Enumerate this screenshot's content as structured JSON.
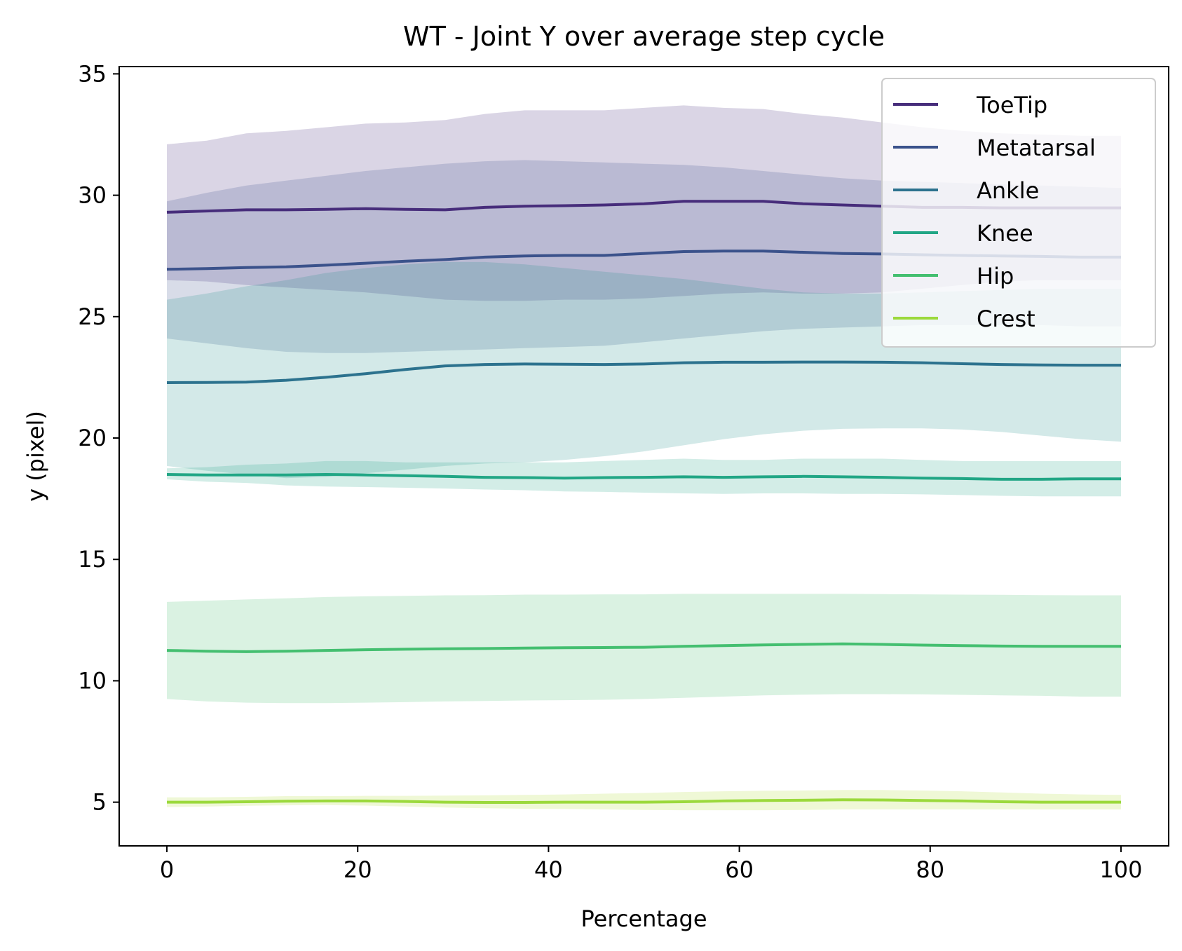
{
  "chart_data": {
    "type": "line",
    "title": "WT - Joint Y over average step cycle",
    "xlabel": "Percentage",
    "ylabel": "y (pixel)",
    "xlim": [
      -5,
      105
    ],
    "ylim": [
      3.2,
      35.3
    ],
    "xticks": [
      0,
      20,
      40,
      60,
      80,
      100
    ],
    "yticks": [
      5,
      10,
      15,
      20,
      25,
      30,
      35
    ],
    "legend_position": "upper right",
    "x": [
      0,
      4.17,
      8.33,
      12.5,
      16.67,
      20.83,
      25,
      29.17,
      33.33,
      37.5,
      41.67,
      45.83,
      50,
      54.17,
      58.33,
      62.5,
      66.67,
      70.83,
      75,
      79.17,
      83.33,
      87.5,
      91.67,
      95.83,
      100
    ],
    "series": [
      {
        "name": "ToeTip",
        "color": "#472d7b",
        "mean": [
          29.3,
          29.35,
          29.4,
          29.4,
          29.42,
          29.45,
          29.42,
          29.4,
          29.5,
          29.55,
          29.57,
          29.6,
          29.65,
          29.75,
          29.75,
          29.75,
          29.65,
          29.6,
          29.55,
          29.5,
          29.5,
          29.48,
          29.48,
          29.48,
          29.48
        ],
        "upper": [
          32.1,
          32.25,
          32.55,
          32.65,
          32.8,
          32.95,
          33.0,
          33.1,
          33.35,
          33.5,
          33.5,
          33.5,
          33.6,
          33.7,
          33.6,
          33.55,
          33.35,
          33.2,
          33.0,
          32.8,
          32.65,
          32.55,
          32.5,
          32.45,
          32.45
        ],
        "lower": [
          26.5,
          26.45,
          26.3,
          26.2,
          26.1,
          26.0,
          25.85,
          25.7,
          25.65,
          25.65,
          25.7,
          25.7,
          25.75,
          25.85,
          25.95,
          26.0,
          25.95,
          25.95,
          26.0,
          26.15,
          26.3,
          26.45,
          26.5,
          26.5,
          26.5
        ]
      },
      {
        "name": "Metatarsal",
        "color": "#3b528b",
        "mean": [
          26.95,
          26.98,
          27.02,
          27.05,
          27.12,
          27.2,
          27.28,
          27.35,
          27.45,
          27.5,
          27.52,
          27.52,
          27.6,
          27.68,
          27.7,
          27.7,
          27.65,
          27.6,
          27.58,
          27.55,
          27.52,
          27.5,
          27.48,
          27.45,
          27.45
        ],
        "upper": [
          29.75,
          30.1,
          30.4,
          30.6,
          30.8,
          31.0,
          31.15,
          31.3,
          31.4,
          31.45,
          31.4,
          31.35,
          31.3,
          31.25,
          31.15,
          31.0,
          30.85,
          30.7,
          30.6,
          30.55,
          30.5,
          30.45,
          30.4,
          30.35,
          30.3
        ],
        "lower": [
          24.1,
          23.9,
          23.7,
          23.55,
          23.5,
          23.5,
          23.55,
          23.6,
          23.65,
          23.7,
          23.75,
          23.8,
          23.95,
          24.1,
          24.25,
          24.4,
          24.5,
          24.55,
          24.6,
          24.65,
          24.65,
          24.65,
          24.65,
          24.6,
          24.6
        ]
      },
      {
        "name": "Ankle",
        "color": "#21918c",
        "lineColor": "#2c728e",
        "mean": [
          22.28,
          22.29,
          22.3,
          22.38,
          22.5,
          22.65,
          22.82,
          22.97,
          23.03,
          23.05,
          23.04,
          23.03,
          23.05,
          23.1,
          23.12,
          23.12,
          23.13,
          23.13,
          23.12,
          23.1,
          23.06,
          23.03,
          23.01,
          23.0,
          23.0
        ],
        "upper": [
          25.7,
          25.95,
          26.25,
          26.5,
          26.8,
          27.0,
          27.15,
          27.25,
          27.25,
          27.15,
          27.0,
          26.85,
          26.7,
          26.55,
          26.35,
          26.15,
          26.0,
          25.95,
          25.95,
          26.0,
          26.05,
          26.1,
          26.15,
          26.15,
          26.15
        ],
        "lower": [
          18.85,
          18.65,
          18.5,
          18.35,
          18.4,
          18.55,
          18.7,
          18.85,
          18.95,
          19.0,
          19.1,
          19.25,
          19.45,
          19.7,
          19.95,
          20.15,
          20.3,
          20.38,
          20.4,
          20.4,
          20.35,
          20.25,
          20.1,
          19.95,
          19.85
        ]
      },
      {
        "name": "Knee",
        "color": "#21a685",
        "mean": [
          18.5,
          18.48,
          18.48,
          18.48,
          18.5,
          18.48,
          18.45,
          18.42,
          18.38,
          18.37,
          18.35,
          18.37,
          18.38,
          18.4,
          18.38,
          18.4,
          18.42,
          18.4,
          18.38,
          18.35,
          18.33,
          18.3,
          18.3,
          18.32,
          18.32
        ],
        "upper": [
          18.75,
          18.8,
          18.9,
          18.95,
          19.05,
          19.05,
          19.0,
          19.0,
          19.0,
          19.0,
          19.0,
          19.05,
          19.1,
          19.15,
          19.1,
          19.1,
          19.15,
          19.15,
          19.15,
          19.1,
          19.05,
          19.05,
          19.05,
          19.05,
          19.05
        ],
        "lower": [
          18.3,
          18.2,
          18.15,
          18.05,
          18.0,
          17.98,
          17.95,
          17.92,
          17.88,
          17.85,
          17.8,
          17.78,
          17.75,
          17.72,
          17.7,
          17.72,
          17.72,
          17.7,
          17.7,
          17.68,
          17.65,
          17.62,
          17.6,
          17.6,
          17.6
        ]
      },
      {
        "name": "Hip",
        "color": "#44bf70",
        "mean": [
          11.25,
          11.22,
          11.2,
          11.22,
          11.25,
          11.28,
          11.3,
          11.32,
          11.33,
          11.35,
          11.36,
          11.37,
          11.38,
          11.42,
          11.45,
          11.48,
          11.5,
          11.52,
          11.5,
          11.47,
          11.45,
          11.43,
          11.42,
          11.42,
          11.42
        ],
        "upper": [
          13.25,
          13.3,
          13.35,
          13.4,
          13.45,
          13.48,
          13.5,
          13.52,
          13.53,
          13.55,
          13.55,
          13.56,
          13.56,
          13.58,
          13.58,
          13.58,
          13.58,
          13.58,
          13.57,
          13.56,
          13.55,
          13.54,
          13.53,
          13.52,
          13.52
        ],
        "lower": [
          9.25,
          9.15,
          9.1,
          9.08,
          9.08,
          9.1,
          9.12,
          9.15,
          9.17,
          9.19,
          9.2,
          9.22,
          9.25,
          9.3,
          9.35,
          9.4,
          9.43,
          9.45,
          9.45,
          9.44,
          9.42,
          9.4,
          9.38,
          9.35,
          9.35
        ]
      },
      {
        "name": "Crest",
        "color": "#addc30",
        "lineColor": "#9bd93c",
        "mean": [
          5.0,
          5.0,
          5.02,
          5.04,
          5.05,
          5.05,
          5.03,
          5.0,
          4.99,
          4.99,
          5.0,
          5.0,
          5.0,
          5.02,
          5.05,
          5.07,
          5.08,
          5.1,
          5.09,
          5.07,
          5.05,
          5.02,
          5.0,
          5.0,
          5.0
        ],
        "upper": [
          5.2,
          5.2,
          5.22,
          5.25,
          5.25,
          5.26,
          5.26,
          5.27,
          5.28,
          5.3,
          5.32,
          5.35,
          5.38,
          5.42,
          5.45,
          5.47,
          5.48,
          5.5,
          5.5,
          5.48,
          5.45,
          5.4,
          5.35,
          5.32,
          5.3
        ],
        "lower": [
          4.8,
          4.82,
          4.85,
          4.87,
          4.88,
          4.86,
          4.82,
          4.78,
          4.75,
          4.73,
          4.72,
          4.7,
          4.68,
          4.67,
          4.67,
          4.67,
          4.68,
          4.7,
          4.7,
          4.7,
          4.7,
          4.7,
          4.7,
          4.7,
          4.7
        ]
      }
    ]
  }
}
